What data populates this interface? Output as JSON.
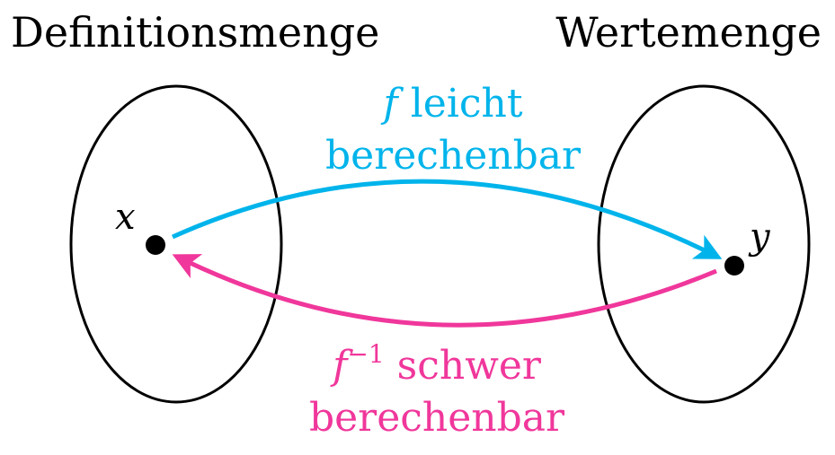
{
  "domain_title": "Definitionsmenge",
  "codomain_title": "Wertemenge",
  "forward": {
    "symbol": "f",
    "text_line1": " leicht",
    "text_line2": "berechenbar",
    "color": "#00b4eb"
  },
  "inverse": {
    "symbol": "f",
    "exponent": "−1",
    "text_line1": " schwer",
    "text_line2": "berechenbar",
    "color": "#f0379b"
  },
  "domain_point": "x",
  "codomain_point": "y",
  "colors": {
    "outline": "#000000",
    "point": "#000000",
    "background": "#ffffff"
  }
}
